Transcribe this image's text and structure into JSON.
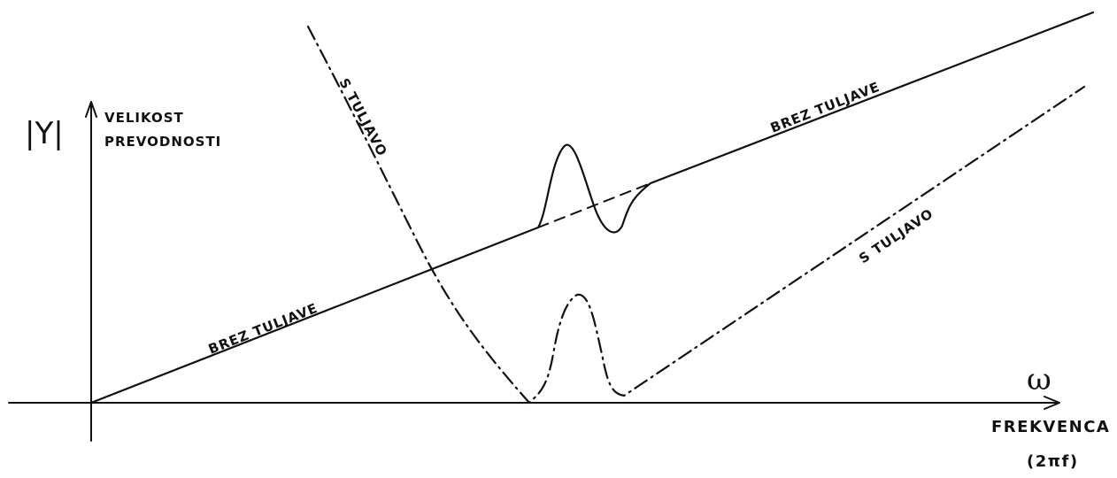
{
  "y_axis": {
    "symbol": "|Y|",
    "label_line1": "VELIKOST",
    "label_line2": "PREVODNOSTI"
  },
  "x_axis": {
    "symbol": "ω",
    "label_line1": "FREKVENCA",
    "label_line2": "(2πf)"
  },
  "curves": {
    "without_coil": {
      "label_lower": "BREZ TULJAVE",
      "label_upper": "BREZ TULJAVE",
      "line_style": "solid"
    },
    "with_coil": {
      "label_upper": "S TULJAVO",
      "label_lower": "S TULJAVO",
      "line_style": "dash-dot"
    }
  },
  "colors": {
    "ink": "#111111",
    "background": "#ffffff"
  }
}
